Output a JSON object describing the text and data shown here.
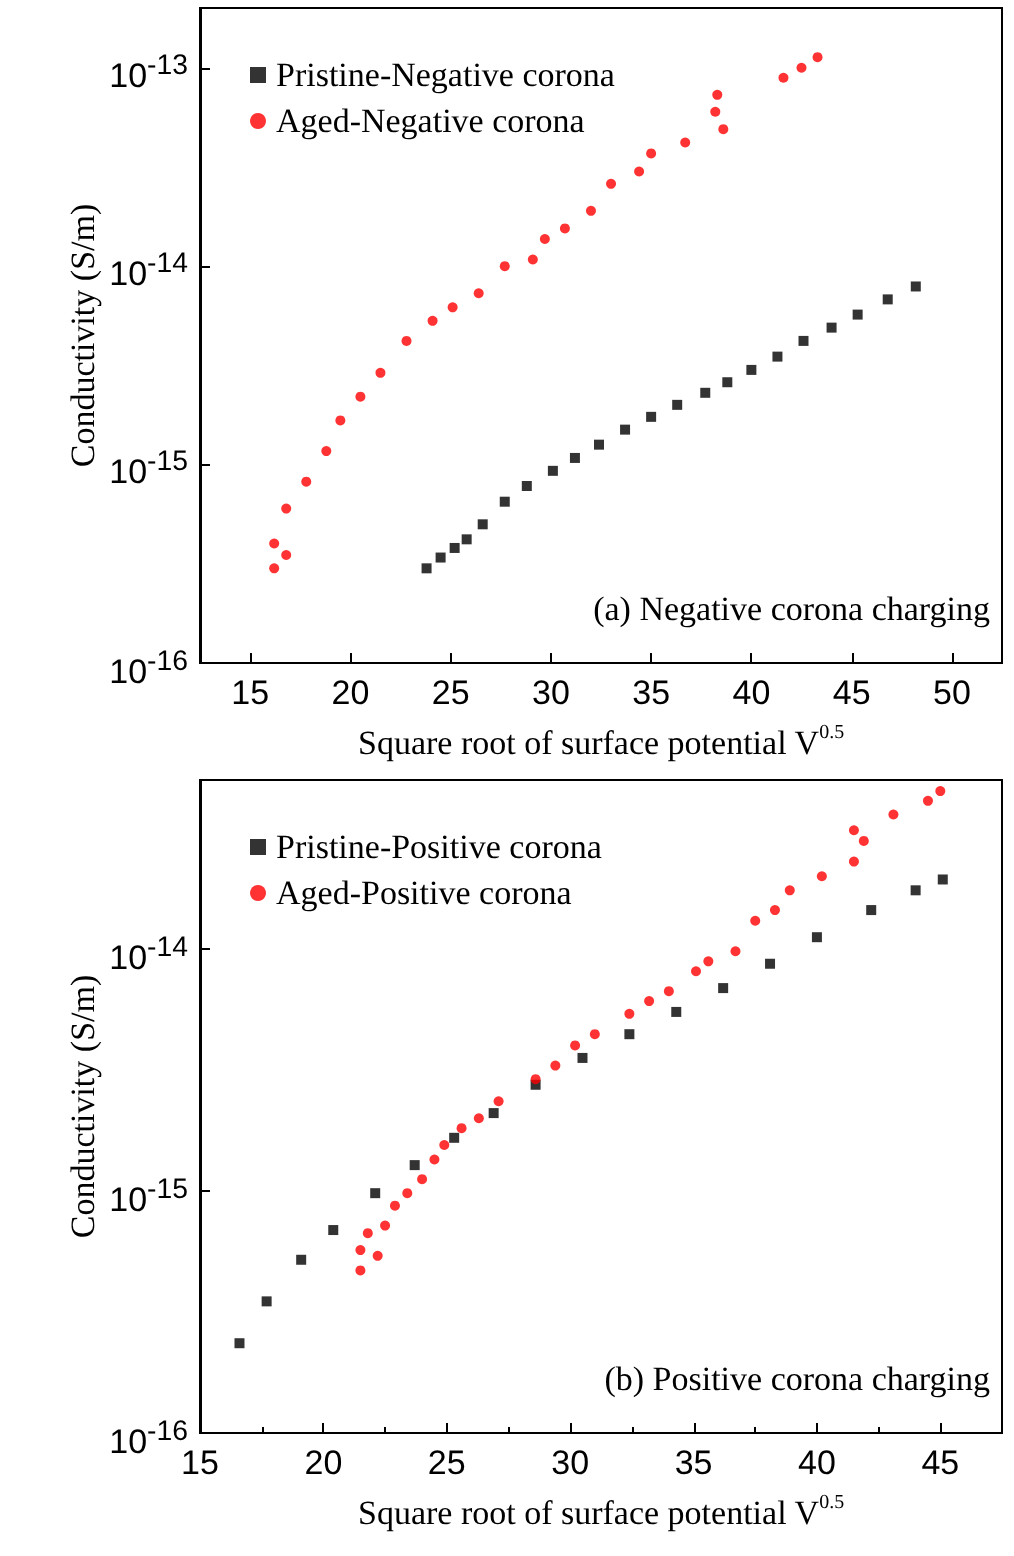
{
  "chart_data": [
    {
      "type": "scatter",
      "xlabel": "Square root of surface potential V$^{0.5}$",
      "ylabel": "Conductivity (S/m)",
      "log": "y",
      "xlim": [
        12.5,
        52.5
      ],
      "xticks": [
        15,
        20,
        25,
        30,
        35,
        40,
        45,
        50
      ],
      "ylim": [
        1e-16,
        2e-13
      ],
      "yticks": [
        {
          "value": 1e-16,
          "label": "10$^{-16}$"
        },
        {
          "value": 1e-15,
          "label": "10$^{-15}$"
        },
        {
          "value": 1e-14,
          "label": "10$^{-14}$"
        },
        {
          "value": 1e-13,
          "label": "10$^{-13}$"
        }
      ],
      "grid": false,
      "legend": "top left",
      "annotations": [
        "(a) Negative corona charging"
      ],
      "series": [
        {
          "name": "Pristine-Negative corona",
          "color": "#000000",
          "marker": "square",
          "x": [
            23.8,
            24.5,
            25.2,
            25.8,
            26.6,
            27.7,
            28.8,
            30.1,
            31.2,
            32.4,
            33.7,
            35.0,
            36.3,
            37.7,
            38.8,
            40.0,
            41.3,
            42.6,
            44.0,
            45.3,
            46.8,
            48.2
          ],
          "values": [
            3e-16,
            3.4e-16,
            3.8e-16,
            4.2e-16,
            5e-16,
            6.5e-16,
            7.8e-16,
            9.3e-16,
            1.08e-15,
            1.26e-15,
            1.5e-15,
            1.74e-15,
            2e-15,
            2.3e-15,
            2.6e-15,
            3e-15,
            3.5e-15,
            4.2e-15,
            4.9e-15,
            5.7e-15,
            6.8e-15,
            7.9e-15
          ]
        },
        {
          "name": "Aged-Negative corona",
          "color": "#ff0000",
          "marker": "circle",
          "x": [
            16.2,
            16.2,
            16.8,
            16.8,
            17.8,
            18.8,
            19.5,
            20.5,
            21.5,
            22.8,
            24.1,
            25.1,
            26.4,
            27.7,
            29.1,
            29.7,
            30.7,
            32.0,
            33.0,
            34.4,
            35.0,
            36.7,
            38.2,
            38.3,
            38.6,
            41.6,
            42.5,
            43.3
          ],
          "values": [
            3e-16,
            4e-16,
            3.5e-16,
            6e-16,
            8.2e-16,
            1.17e-15,
            1.67e-15,
            2.2e-15,
            2.9e-15,
            4.2e-15,
            5.3e-15,
            6.2e-15,
            7.3e-15,
            1e-14,
            1.08e-14,
            1.37e-14,
            1.55e-14,
            1.9e-14,
            2.6e-14,
            3e-14,
            3.7e-14,
            4.2e-14,
            6e-14,
            7.3e-14,
            4.9e-14,
            8.9e-14,
            1e-13,
            1.13e-13
          ]
        }
      ]
    },
    {
      "type": "scatter",
      "xlabel": "Square root of surface potential V$^{0.5}$",
      "ylabel": "Conductivity (S/m)",
      "log": "y",
      "xlim": [
        15,
        47.5
      ],
      "xticks": [
        15,
        20,
        25,
        30,
        35,
        40,
        45
      ],
      "ylim": [
        1e-16,
        5e-14
      ],
      "yticks": [
        {
          "value": 1e-16,
          "label": "10$^{-16}$"
        },
        {
          "value": 1e-15,
          "label": "10$^{-15}$"
        },
        {
          "value": 1e-14,
          "label": "10$^{-14}$"
        }
      ],
      "grid": false,
      "legend": "top left",
      "annotations": [
        "(b) Positive corona charging"
      ],
      "series": [
        {
          "name": "Pristine-Positive corona",
          "color": "#000000",
          "marker": "square",
          "x": [
            16.6,
            17.7,
            19.1,
            20.4,
            22.1,
            23.7,
            25.3,
            26.9,
            28.6,
            30.5,
            32.4,
            34.3,
            36.2,
            38.1,
            40.0,
            42.2,
            44.0,
            45.1
          ],
          "values": [
            2.35e-16,
            3.5e-16,
            5.2e-16,
            6.9e-16,
            9.8e-16,
            1.28e-15,
            1.66e-15,
            2.1e-15,
            2.75e-15,
            3.55e-15,
            4.45e-15,
            5.5e-15,
            6.9e-15,
            8.7e-15,
            1.12e-14,
            1.45e-14,
            1.75e-14,
            1.94e-14
          ]
        },
        {
          "name": "Aged-Positive corona",
          "color": "#ff0000",
          "marker": "circle",
          "x": [
            21.5,
            21.5,
            21.8,
            22.2,
            22.5,
            22.9,
            23.4,
            24.0,
            24.5,
            24.9,
            25.6,
            26.3,
            27.1,
            28.6,
            29.4,
            30.2,
            31.0,
            32.4,
            33.2,
            34.0,
            35.1,
            35.6,
            36.7,
            37.5,
            38.3,
            38.9,
            40.2,
            41.5,
            41.5,
            41.9,
            43.1,
            44.5,
            45.0
          ],
          "values": [
            4.7e-16,
            5.7e-16,
            6.7e-16,
            5.4e-16,
            7.2e-16,
            8.7e-16,
            9.8e-16,
            1.12e-15,
            1.35e-15,
            1.55e-15,
            1.82e-15,
            2e-15,
            2.35e-15,
            2.9e-15,
            3.3e-15,
            4e-15,
            4.45e-15,
            5.4e-15,
            6.1e-15,
            6.7e-15,
            8.1e-15,
            8.9e-15,
            9.8e-15,
            1.31e-14,
            1.45e-14,
            1.75e-14,
            2e-14,
            3.1e-14,
            2.3e-14,
            2.8e-14,
            3.6e-14,
            4.1e-14,
            4.5e-14
          ]
        }
      ]
    }
  ]
}
